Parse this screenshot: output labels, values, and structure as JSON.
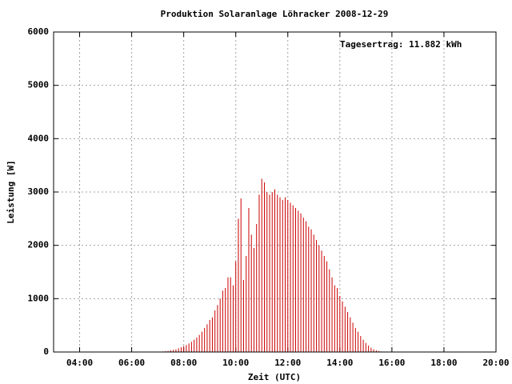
{
  "chart_data": {
    "type": "impulse",
    "title": "Produktion Solaranlage Löhracker 2008-12-29",
    "xlabel": "Zeit (UTC)",
    "ylabel": "Leistung [W]",
    "annotation": "Tagesertrag: 11.882 kWh",
    "color": "#cc0000",
    "grid": true,
    "xlim": [
      3,
      20
    ],
    "ylim": [
      0,
      6000
    ],
    "xticks": [
      {
        "value": 4,
        "label": "04:00"
      },
      {
        "value": 6,
        "label": "06:00"
      },
      {
        "value": 8,
        "label": "08:00"
      },
      {
        "value": 10,
        "label": "10:00"
      },
      {
        "value": 12,
        "label": "12:00"
      },
      {
        "value": 14,
        "label": "14:00"
      },
      {
        "value": 16,
        "label": "16:00"
      },
      {
        "value": 18,
        "label": "18:00"
      },
      {
        "value": 20,
        "label": "20:00"
      }
    ],
    "yticks": [
      0,
      1000,
      2000,
      3000,
      4000,
      5000,
      6000
    ],
    "x": [
      7.0,
      7.1,
      7.2,
      7.3,
      7.4,
      7.5,
      7.6,
      7.7,
      7.8,
      7.9,
      8.0,
      8.1,
      8.2,
      8.3,
      8.4,
      8.5,
      8.6,
      8.7,
      8.8,
      8.9,
      9.0,
      9.1,
      9.2,
      9.3,
      9.4,
      9.5,
      9.6,
      9.7,
      9.8,
      9.9,
      10.0,
      10.1,
      10.2,
      10.3,
      10.4,
      10.5,
      10.6,
      10.7,
      10.8,
      10.9,
      11.0,
      11.1,
      11.2,
      11.3,
      11.4,
      11.5,
      11.6,
      11.7,
      11.8,
      11.9,
      12.0,
      12.1,
      12.2,
      12.3,
      12.4,
      12.5,
      12.6,
      12.7,
      12.8,
      12.9,
      13.0,
      13.1,
      13.2,
      13.3,
      13.4,
      13.5,
      13.6,
      13.7,
      13.8,
      13.9,
      14.0,
      14.1,
      14.2,
      14.3,
      14.4,
      14.5,
      14.6,
      14.7,
      14.8,
      14.9,
      15.0,
      15.1,
      15.2,
      15.3,
      15.4,
      15.5,
      15.6,
      15.7,
      15.8
    ],
    "values": [
      5,
      5,
      10,
      15,
      20,
      30,
      40,
      50,
      70,
      90,
      110,
      130,
      160,
      190,
      230,
      270,
      320,
      380,
      450,
      520,
      600,
      650,
      780,
      880,
      1000,
      1150,
      1200,
      1400,
      1400,
      1250,
      1700,
      2500,
      2880,
      1350,
      1800,
      2700,
      2200,
      1950,
      2400,
      2950,
      3250,
      3180,
      3000,
      2950,
      3000,
      3050,
      2950,
      2900,
      2850,
      2900,
      2850,
      2800,
      2750,
      2700,
      2650,
      2600,
      2520,
      2450,
      2350,
      2300,
      2200,
      2100,
      2000,
      1900,
      1800,
      1700,
      1550,
      1400,
      1250,
      1200,
      1050,
      950,
      850,
      750,
      650,
      550,
      450,
      380,
      300,
      230,
      170,
      120,
      80,
      50,
      30,
      20,
      10,
      5,
      0
    ]
  }
}
